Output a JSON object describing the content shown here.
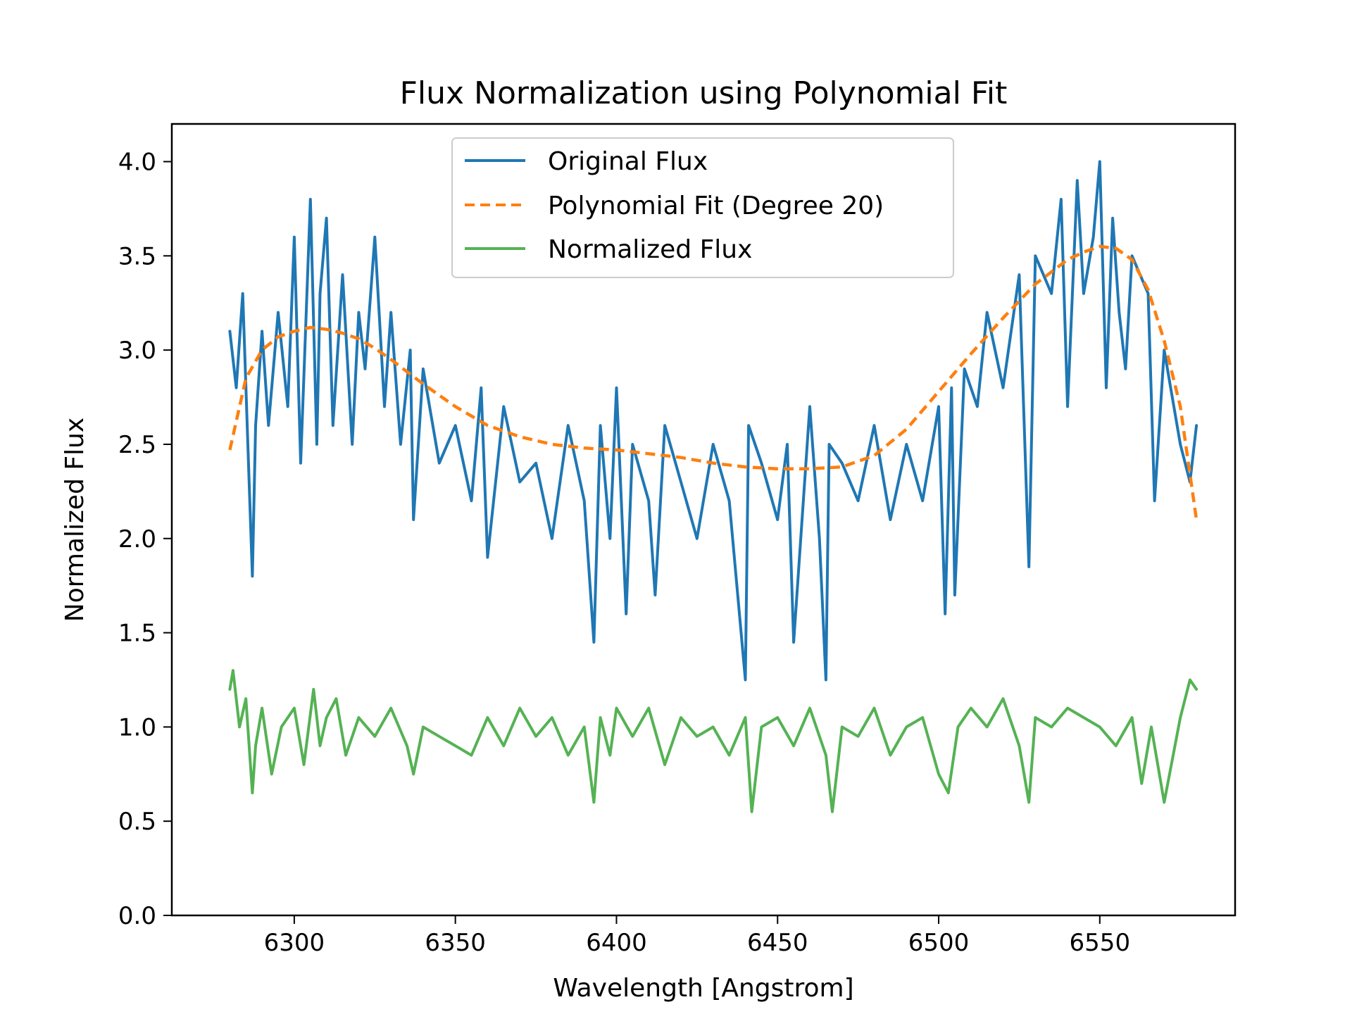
{
  "chart_data": {
    "type": "line",
    "title": "Flux Normalization using Polynomial Fit",
    "xlabel": "Wavelength [Angstrom]",
    "ylabel": "Normalized Flux",
    "xlim": [
      6262,
      6592
    ],
    "ylim": [
      0.0,
      4.2
    ],
    "grid": false,
    "legend_position": "top-center",
    "x_ticks": [
      {
        "value": 6300,
        "label": "6300"
      },
      {
        "value": 6350,
        "label": "6350"
      },
      {
        "value": 6400,
        "label": "6400"
      },
      {
        "value": 6450,
        "label": "6450"
      },
      {
        "value": 6500,
        "label": "6500"
      },
      {
        "value": 6550,
        "label": "6550"
      }
    ],
    "y_ticks": [
      {
        "value": 0.0,
        "label": "0.0"
      },
      {
        "value": 0.5,
        "label": "0.5"
      },
      {
        "value": 1.0,
        "label": "1.0"
      },
      {
        "value": 1.5,
        "label": "1.5"
      },
      {
        "value": 2.0,
        "label": "2.0"
      },
      {
        "value": 2.5,
        "label": "2.5"
      },
      {
        "value": 3.0,
        "label": "3.0"
      },
      {
        "value": 3.5,
        "label": "3.5"
      },
      {
        "value": 4.0,
        "label": "4.0"
      }
    ],
    "series": [
      {
        "name": "Original Flux",
        "color": "#1f77b4",
        "style": "solid",
        "x": [
          6280,
          6282,
          6284,
          6286,
          6287,
          6288,
          6290,
          6292,
          6295,
          6298,
          6300,
          6302,
          6305,
          6307,
          6308,
          6310,
          6312,
          6315,
          6318,
          6320,
          6322,
          6325,
          6328,
          6330,
          6333,
          6336,
          6337,
          6340,
          6345,
          6350,
          6355,
          6358,
          6360,
          6365,
          6370,
          6375,
          6380,
          6385,
          6390,
          6393,
          6395,
          6398,
          6400,
          6403,
          6405,
          6410,
          6412,
          6415,
          6420,
          6425,
          6430,
          6435,
          6440,
          6441,
          6445,
          6450,
          6453,
          6455,
          6460,
          6463,
          6465,
          6466,
          6470,
          6475,
          6480,
          6485,
          6490,
          6495,
          6500,
          6502,
          6504,
          6505,
          6508,
          6512,
          6515,
          6520,
          6525,
          6528,
          6530,
          6535,
          6538,
          6540,
          6543,
          6545,
          6548,
          6550,
          6552,
          6554,
          6556,
          6558,
          6560,
          6565,
          6567,
          6570,
          6575,
          6578,
          6580
        ],
        "y": [
          3.1,
          2.8,
          3.3,
          2.3,
          1.8,
          2.6,
          3.1,
          2.6,
          3.2,
          2.7,
          3.6,
          2.4,
          3.8,
          2.5,
          3.3,
          3.7,
          2.6,
          3.4,
          2.5,
          3.2,
          2.9,
          3.6,
          2.7,
          3.2,
          2.5,
          3.0,
          2.1,
          2.9,
          2.4,
          2.6,
          2.2,
          2.8,
          1.9,
          2.7,
          2.3,
          2.4,
          2.0,
          2.6,
          2.2,
          1.45,
          2.6,
          2.0,
          2.8,
          1.6,
          2.5,
          2.2,
          1.7,
          2.6,
          2.3,
          2.0,
          2.5,
          2.2,
          1.25,
          2.6,
          2.4,
          2.1,
          2.5,
          1.45,
          2.7,
          2.0,
          1.25,
          2.5,
          2.4,
          2.2,
          2.6,
          2.1,
          2.5,
          2.2,
          2.7,
          1.6,
          2.8,
          1.7,
          2.9,
          2.7,
          3.2,
          2.8,
          3.4,
          1.85,
          3.5,
          3.3,
          3.8,
          2.7,
          3.9,
          3.3,
          3.6,
          4.0,
          2.8,
          3.7,
          3.2,
          2.9,
          3.5,
          3.3,
          2.2,
          3.0,
          2.5,
          2.3,
          2.6
        ]
      },
      {
        "name": "Polynomial Fit (Degree 20)",
        "color": "#ff7f0e",
        "style": "dashed",
        "x": [
          6280,
          6285,
          6290,
          6295,
          6300,
          6305,
          6310,
          6315,
          6320,
          6325,
          6330,
          6340,
          6350,
          6360,
          6370,
          6380,
          6390,
          6400,
          6410,
          6420,
          6430,
          6440,
          6450,
          6460,
          6470,
          6480,
          6490,
          6500,
          6510,
          6520,
          6530,
          6540,
          6545,
          6550,
          6555,
          6560,
          6565,
          6570,
          6575,
          6580
        ],
        "y": [
          2.47,
          2.85,
          3.0,
          3.07,
          3.1,
          3.12,
          3.11,
          3.09,
          3.06,
          3.01,
          2.95,
          2.82,
          2.7,
          2.6,
          2.54,
          2.5,
          2.48,
          2.47,
          2.45,
          2.43,
          2.4,
          2.38,
          2.37,
          2.37,
          2.38,
          2.44,
          2.58,
          2.78,
          2.98,
          3.17,
          3.35,
          3.48,
          3.52,
          3.55,
          3.54,
          3.48,
          3.32,
          3.05,
          2.7,
          2.1
        ]
      },
      {
        "name": "Normalized Flux",
        "color": "#55b254",
        "style": "solid",
        "x": [
          6280,
          6281,
          6283,
          6285,
          6287,
          6288,
          6290,
          6293,
          6296,
          6300,
          6303,
          6306,
          6308,
          6310,
          6313,
          6316,
          6320,
          6325,
          6330,
          6335,
          6337,
          6340,
          6345,
          6350,
          6355,
          6360,
          6365,
          6370,
          6375,
          6380,
          6385,
          6390,
          6393,
          6395,
          6398,
          6400,
          6405,
          6410,
          6415,
          6420,
          6425,
          6430,
          6435,
          6440,
          6442,
          6445,
          6450,
          6455,
          6460,
          6465,
          6467,
          6470,
          6475,
          6480,
          6485,
          6490,
          6495,
          6500,
          6503,
          6506,
          6510,
          6515,
          6520,
          6525,
          6528,
          6530,
          6535,
          6540,
          6545,
          6550,
          6555,
          6560,
          6563,
          6566,
          6570,
          6575,
          6578,
          6580
        ],
        "y": [
          1.2,
          1.3,
          1.0,
          1.15,
          0.65,
          0.9,
          1.1,
          0.75,
          1.0,
          1.1,
          0.8,
          1.2,
          0.9,
          1.05,
          1.15,
          0.85,
          1.05,
          0.95,
          1.1,
          0.9,
          0.75,
          1.0,
          0.95,
          0.9,
          0.85,
          1.05,
          0.9,
          1.1,
          0.95,
          1.05,
          0.85,
          1.0,
          0.6,
          1.05,
          0.85,
          1.1,
          0.95,
          1.1,
          0.8,
          1.05,
          0.95,
          1.0,
          0.85,
          1.05,
          0.55,
          1.0,
          1.05,
          0.9,
          1.1,
          0.85,
          0.55,
          1.0,
          0.95,
          1.1,
          0.85,
          1.0,
          1.05,
          0.75,
          0.65,
          1.0,
          1.1,
          1.0,
          1.15,
          0.9,
          0.6,
          1.05,
          1.0,
          1.1,
          1.05,
          1.0,
          0.9,
          1.05,
          0.7,
          1.0,
          0.6,
          1.05,
          1.25,
          1.2
        ]
      }
    ]
  }
}
